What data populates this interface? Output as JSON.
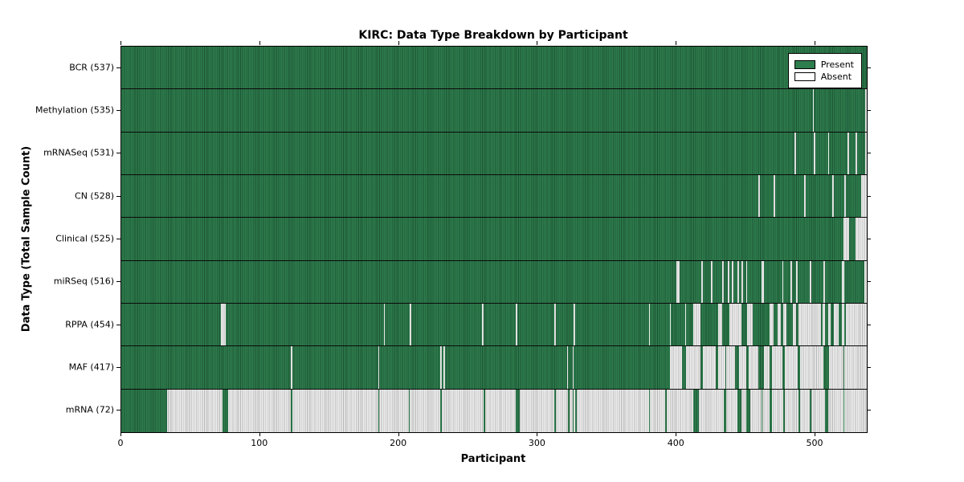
{
  "chart_data": {
    "type": "heatmap",
    "title": "KIRC: Data Type Breakdown by Participant",
    "xlabel": "Participant",
    "ylabel": "Data Type (Total Sample Count)",
    "xlim": [
      0,
      537
    ],
    "x_ticks": [
      0,
      100,
      200,
      300,
      400,
      500
    ],
    "grid": false,
    "legend_position": "upper right",
    "legend": {
      "present": {
        "label": "Present",
        "color": "#2e7d4d"
      },
      "absent": {
        "label": "Absent",
        "color": "#ffffff"
      }
    },
    "colors": {
      "present_fill": "#2e7d4d",
      "present_edge": "#1c5233",
      "absent_fill": "#ededed",
      "absent_edge": "#b5b5b5",
      "frame": "#000000"
    },
    "total_participants": 537,
    "rows": [
      {
        "label": "BCR (537)",
        "count": 537,
        "mode": "absent",
        "ranges": []
      },
      {
        "label": "Methylation (535)",
        "count": 535,
        "mode": "absent",
        "ranges": [
          [
            498,
            499
          ],
          [
            536,
            537
          ]
        ]
      },
      {
        "label": "mRNASeq (531)",
        "count": 531,
        "mode": "absent",
        "ranges": [
          [
            485,
            486
          ],
          [
            499,
            500
          ],
          [
            509,
            510
          ],
          [
            523,
            524
          ],
          [
            529,
            530
          ],
          [
            536,
            537
          ]
        ]
      },
      {
        "label": "CN (528)",
        "count": 528,
        "mode": "absent",
        "ranges": [
          [
            459,
            460
          ],
          [
            470,
            471
          ],
          [
            492,
            493
          ],
          [
            512,
            513
          ],
          [
            521,
            522
          ],
          [
            533,
            537
          ]
        ]
      },
      {
        "label": "Clinical (525)",
        "count": 525,
        "mode": "absent",
        "ranges": [
          [
            520,
            524
          ],
          [
            529,
            537
          ]
        ]
      },
      {
        "label": "miRSeq (516)",
        "count": 516,
        "mode": "absent",
        "ranges": [
          [
            400,
            402
          ],
          [
            418,
            419
          ],
          [
            425,
            426
          ],
          [
            433,
            434
          ],
          [
            437,
            438
          ],
          [
            440,
            441
          ],
          [
            444,
            445
          ],
          [
            447,
            448
          ],
          [
            450,
            451
          ],
          [
            461,
            463
          ],
          [
            476,
            477
          ],
          [
            482,
            483
          ],
          [
            486,
            487
          ],
          [
            496,
            497
          ],
          [
            506,
            507
          ],
          [
            519,
            521
          ],
          [
            535,
            537
          ]
        ]
      },
      {
        "label": "RPPA (454)",
        "count": 454,
        "mode": "absent",
        "ranges": [
          [
            72,
            75
          ],
          [
            189,
            190
          ],
          [
            208,
            209
          ],
          [
            260,
            261
          ],
          [
            284,
            285
          ],
          [
            312,
            313
          ],
          [
            326,
            327
          ],
          [
            380,
            381
          ],
          [
            395,
            396
          ],
          [
            406,
            407
          ],
          [
            412,
            417
          ],
          [
            430,
            433
          ],
          [
            438,
            447
          ],
          [
            451,
            455
          ],
          [
            467,
            470
          ],
          [
            473,
            475
          ],
          [
            477,
            479
          ],
          [
            484,
            486
          ],
          [
            488,
            504
          ],
          [
            505,
            507
          ],
          [
            509,
            511
          ],
          [
            513,
            517
          ],
          [
            519,
            521
          ],
          [
            522,
            537
          ]
        ]
      },
      {
        "label": "MAF (417)",
        "count": 417,
        "mode": "absent",
        "ranges": [
          [
            122,
            123
          ],
          [
            185,
            186
          ],
          [
            230,
            231
          ],
          [
            232,
            233
          ],
          [
            321,
            322
          ],
          [
            325,
            326
          ],
          [
            395,
            404
          ],
          [
            407,
            417
          ],
          [
            419,
            428
          ],
          [
            430,
            435
          ],
          [
            436,
            442
          ],
          [
            445,
            450
          ],
          [
            452,
            459
          ],
          [
            463,
            467
          ],
          [
            469,
            476
          ],
          [
            478,
            487
          ],
          [
            489,
            506
          ],
          [
            510,
            520
          ],
          [
            521,
            537
          ]
        ]
      },
      {
        "label": "mRNA (72)",
        "count": 72,
        "mode": "present",
        "ranges": [
          [
            0,
            33
          ],
          [
            73,
            77
          ],
          [
            122,
            123
          ],
          [
            185,
            186
          ],
          [
            207,
            208
          ],
          [
            230,
            231
          ],
          [
            261,
            262
          ],
          [
            284,
            287
          ],
          [
            312,
            313
          ],
          [
            322,
            323
          ],
          [
            325,
            326
          ],
          [
            327,
            328
          ],
          [
            380,
            381
          ],
          [
            392,
            393
          ],
          [
            412,
            416
          ],
          [
            434,
            436
          ],
          [
            444,
            447
          ],
          [
            450,
            453
          ],
          [
            461,
            462
          ],
          [
            467,
            469
          ],
          [
            477,
            478
          ],
          [
            488,
            489
          ],
          [
            496,
            497
          ],
          [
            507,
            509
          ],
          [
            520,
            521
          ]
        ]
      }
    ]
  }
}
